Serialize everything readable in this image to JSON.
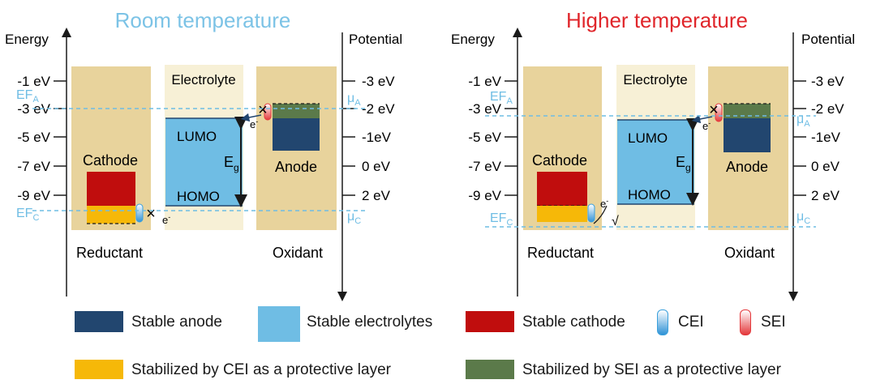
{
  "panels": [
    {
      "id": "left",
      "title": "Room temperature",
      "title_color": "#7cc3e6",
      "left_axis_label": "Energy",
      "right_axis_label": "Potential",
      "left_ticks": [
        "-1 eV",
        "-3 eV",
        "-5 eV",
        "-7 eV",
        "-9 eV"
      ],
      "right_ticks": [
        "-3 eV",
        "-2 eV",
        "-1eV",
        "0 eV",
        "2 eV"
      ],
      "electrolyte_label": "Electrolyte",
      "lumo_label": "LUMO",
      "homo_label": "HOMO",
      "gap_label": "E",
      "gap_sub": "g",
      "cathode_label": "Cathode",
      "anode_label": "Anode",
      "reductant_label": "Reductant",
      "oxidant_label": "Oxidant",
      "ef_a": "EF",
      "ef_a_sub": "A",
      "ef_c": "EF",
      "ef_c_sub": "C",
      "mu_a": "μ",
      "mu_a_sub": "A",
      "mu_c": "μ",
      "mu_c_sub": "C",
      "electron": "e",
      "electron_sup": "-",
      "blocked_mark": "×"
    },
    {
      "id": "right",
      "title": "Higher temperature",
      "title_color": "#e0262b",
      "left_axis_label": "Energy",
      "right_axis_label": "Potential",
      "left_ticks": [
        "-1 eV",
        "-3 eV",
        "-5 eV",
        "-7 eV",
        "-9 eV"
      ],
      "right_ticks": [
        "-3 eV",
        "-2 eV",
        "-1eV",
        "0 eV",
        "2 eV"
      ],
      "electrolyte_label": "Electrolyte",
      "lumo_label": "LUMO",
      "homo_label": "HOMO",
      "gap_label": "E",
      "gap_sub": "g",
      "cathode_label": "Cathode",
      "anode_label": "Anode",
      "reductant_label": "Reductant",
      "oxidant_label": "Oxidant",
      "ef_a": "EF",
      "ef_a_sub": "A",
      "ef_c": "EF",
      "ef_c_sub": "C",
      "mu_a": "μ",
      "mu_a_sub": "A",
      "mu_c": "μ",
      "mu_c_sub": "C",
      "electron": "e",
      "electron_sup": "-",
      "blocked_mark": "×",
      "pass_mark": "√"
    }
  ],
  "legend": [
    {
      "label": "Stable anode",
      "color": "#22466f",
      "kind": "box"
    },
    {
      "label": "Stable electrolytes",
      "color": "#6fbde4",
      "kind": "box"
    },
    {
      "label": "Stable cathode",
      "color": "#c00d0d",
      "kind": "box"
    },
    {
      "label": "CEI",
      "color": "#3aa0dc",
      "kind": "capsule"
    },
    {
      "label": "SEI",
      "color": "#e4393c",
      "kind": "capsule"
    },
    {
      "label": "Stabilized by CEI as a protective layer",
      "color": "#f6b808",
      "kind": "box"
    },
    {
      "label": "Stabilized by SEI as a protective layer",
      "color": "#5b7a4a",
      "kind": "box"
    }
  ],
  "colors": {
    "electrode_bg": "#e8d39c",
    "electrolyte_bg": "#f7f0d6",
    "electrolyte": "#6fbde4",
    "anode": "#22466f",
    "cathode": "#c00d0d",
    "cei_layer": "#f6b808",
    "sei_layer": "#5b7a4a",
    "dashed": "#6fbde4",
    "arrow": "#22466f"
  }
}
